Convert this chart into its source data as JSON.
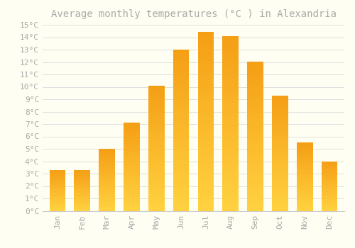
{
  "title": "Average monthly temperatures (°C ) in Alexandria",
  "months": [
    "Jan",
    "Feb",
    "Mar",
    "Apr",
    "May",
    "Jun",
    "Jul",
    "Aug",
    "Sep",
    "Oct",
    "Nov",
    "Dec"
  ],
  "values": [
    3.3,
    3.3,
    5.0,
    7.1,
    10.1,
    13.0,
    14.4,
    14.1,
    12.0,
    9.3,
    5.5,
    4.0
  ],
  "bar_color": "#F5A623",
  "bar_color_light": "#FFD966",
  "background_color": "#FEFEF2",
  "grid_color": "#E0E0E0",
  "text_color": "#AAAAAA",
  "ylim": [
    0,
    15
  ],
  "yticks": [
    0,
    1,
    2,
    3,
    4,
    5,
    6,
    7,
    8,
    9,
    10,
    11,
    12,
    13,
    14,
    15
  ],
  "title_fontsize": 10,
  "tick_fontsize": 8
}
